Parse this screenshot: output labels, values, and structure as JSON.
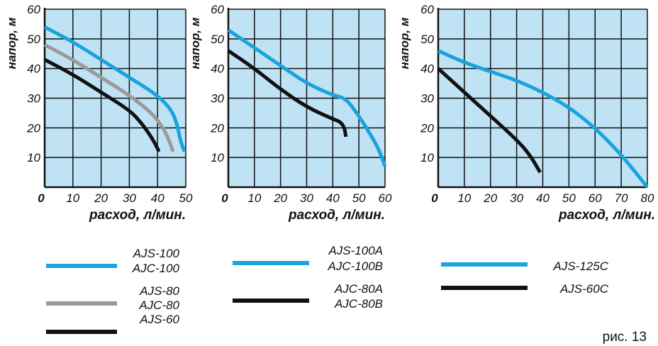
{
  "colors": {
    "plot_bg": "#bfe3f5",
    "grid": "#111111",
    "series_blue": "#1aa3dd",
    "series_gray": "#9a9a9a",
    "series_black": "#111111"
  },
  "caption": "рис. 13",
  "chart_data": [
    {
      "type": "line",
      "ylabel": "напор, м",
      "xlabel": "расход, л/мин.",
      "xlim": [
        0,
        50
      ],
      "ylim": [
        0,
        60
      ],
      "x_ticks": [
        "0",
        "10",
        "20",
        "30",
        "40",
        "50"
      ],
      "y_ticks": [
        "10",
        "20",
        "30",
        "40",
        "50",
        "60"
      ],
      "grid": true,
      "series": [
        {
          "name": "AJS-100 AJC-100",
          "color": "series_blue",
          "x": [
            0,
            10,
            20,
            30,
            40,
            45,
            47,
            48,
            49.5
          ],
          "y": [
            54,
            49,
            43,
            37,
            31,
            26,
            21,
            16,
            12
          ]
        },
        {
          "name": "AJS-80 AJC-80",
          "color": "series_gray",
          "x": [
            0,
            10,
            20,
            30,
            38,
            42,
            44,
            45.5
          ],
          "y": [
            48,
            43,
            37,
            31,
            25,
            20,
            16,
            12
          ]
        },
        {
          "name": "AJS-60",
          "color": "series_black",
          "x": [
            0,
            10,
            20,
            30,
            34,
            37,
            39,
            40.5
          ],
          "y": [
            43,
            38,
            32,
            26,
            22,
            18,
            15,
            12
          ]
        }
      ],
      "legend": [
        {
          "lines": [
            "AJS-100",
            "AJC-100"
          ],
          "color": "series_blue"
        },
        {
          "lines": [
            "AJS-80",
            "AJC-80"
          ],
          "color": "series_gray"
        },
        {
          "lines": [
            "AJS-60"
          ],
          "color": "series_black"
        }
      ]
    },
    {
      "type": "line",
      "ylabel": "напор, м",
      "xlabel": "расход, л/мин.",
      "xlim": [
        0,
        60
      ],
      "ylim": [
        0,
        60
      ],
      "x_ticks": [
        "0",
        "10",
        "20",
        "30",
        "40",
        "50",
        "60"
      ],
      "y_ticks": [
        "10",
        "20",
        "30",
        "40",
        "50",
        "60"
      ],
      "grid": true,
      "series": [
        {
          "name": "AJS-100A AJC-100B",
          "color": "series_blue",
          "x": [
            0,
            10,
            20,
            30,
            40,
            45,
            50,
            55,
            58,
            60
          ],
          "y": [
            53,
            47,
            41,
            35,
            31,
            30,
            24,
            17,
            12,
            7
          ]
        },
        {
          "name": "AJC-80A AJC-80B",
          "color": "series_black",
          "x": [
            0,
            10,
            20,
            30,
            40,
            43,
            44.5,
            45
          ],
          "y": [
            46,
            40,
            33,
            27,
            23,
            22,
            20,
            17
          ]
        }
      ],
      "legend": [
        {
          "lines": [
            "AJS-100A",
            "AJC-100B"
          ],
          "color": "series_blue"
        },
        {
          "lines": [
            "AJC-80A",
            "AJC-80B"
          ],
          "color": "series_black"
        }
      ]
    },
    {
      "type": "line",
      "ylabel": "напор, м",
      "xlabel": "расход, л/мин.",
      "xlim": [
        0,
        80
      ],
      "ylim": [
        0,
        60
      ],
      "x_ticks": [
        "0",
        "10",
        "20",
        "30",
        "40",
        "50",
        "60",
        "70",
        "80"
      ],
      "y_ticks": [
        "10",
        "20",
        "30",
        "40",
        "50",
        "60"
      ],
      "grid": true,
      "series": [
        {
          "name": "AJS-125C",
          "color": "series_blue",
          "x": [
            0,
            10,
            20,
            30,
            40,
            50,
            60,
            70,
            80
          ],
          "y": [
            46,
            42,
            39,
            36,
            32,
            27,
            20,
            11,
            0
          ]
        },
        {
          "name": "AJS-60C",
          "color": "series_black",
          "x": [
            0,
            10,
            20,
            30,
            35,
            39
          ],
          "y": [
            40,
            32,
            24,
            16,
            11,
            5
          ]
        }
      ],
      "legend": [
        {
          "lines": [
            "AJS-125C"
          ],
          "color": "series_blue"
        },
        {
          "lines": [
            "AJS-60C"
          ],
          "color": "series_black"
        }
      ]
    }
  ]
}
